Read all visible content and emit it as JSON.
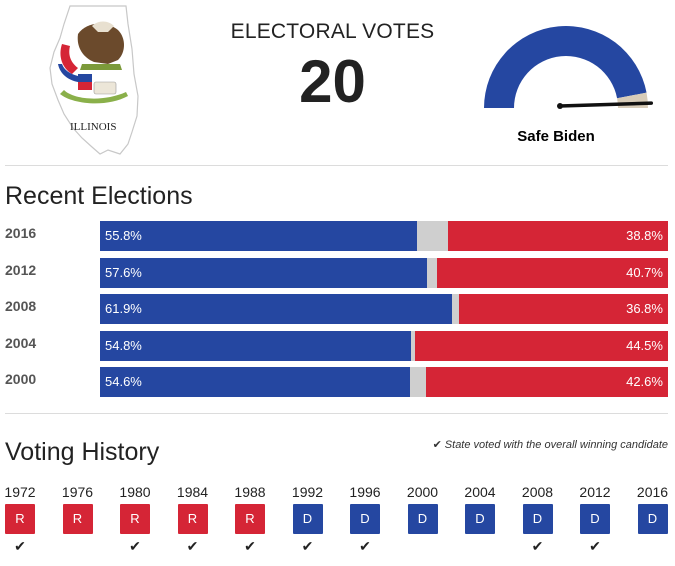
{
  "header": {
    "state_map_text": "ILLINOIS",
    "electoral_votes_label": "ELECTORAL VOTES",
    "electoral_votes": "20",
    "rating": "Safe Biden",
    "gauge": {
      "dem_fraction": 0.94,
      "needle_fraction": 0.96,
      "colors": {
        "dem": "#2547a1",
        "rep": "#d8ccb8"
      }
    }
  },
  "recent_elections": {
    "title": "Recent Elections",
    "rows": [
      {
        "year": "2016",
        "dem": 55.8,
        "rep": 38.8,
        "dem_label": "55.8%",
        "rep_label": "38.8%"
      },
      {
        "year": "2012",
        "dem": 57.6,
        "rep": 40.7,
        "dem_label": "57.6%",
        "rep_label": "40.7%"
      },
      {
        "year": "2008",
        "dem": 61.9,
        "rep": 36.8,
        "dem_label": "61.9%",
        "rep_label": "36.8%"
      },
      {
        "year": "2004",
        "dem": 54.8,
        "rep": 44.5,
        "dem_label": "54.8%",
        "rep_label": "44.5%"
      },
      {
        "year": "2000",
        "dem": 54.6,
        "rep": 42.6,
        "dem_label": "54.6%",
        "rep_label": "42.6%"
      }
    ]
  },
  "voting_history": {
    "title": "Voting History",
    "legend": "State voted with the overall winning candidate",
    "years": [
      {
        "year": "1972",
        "party": "R",
        "winner": true
      },
      {
        "year": "1976",
        "party": "R",
        "winner": false
      },
      {
        "year": "1980",
        "party": "R",
        "winner": true
      },
      {
        "year": "1984",
        "party": "R",
        "winner": true
      },
      {
        "year": "1988",
        "party": "R",
        "winner": true
      },
      {
        "year": "1992",
        "party": "D",
        "winner": true
      },
      {
        "year": "1996",
        "party": "D",
        "winner": true
      },
      {
        "year": "2000",
        "party": "D",
        "winner": false
      },
      {
        "year": "2004",
        "party": "D",
        "winner": false
      },
      {
        "year": "2008",
        "party": "D",
        "winner": true
      },
      {
        "year": "2012",
        "party": "D",
        "winner": true
      },
      {
        "year": "2016",
        "party": "D",
        "winner": false
      }
    ]
  }
}
